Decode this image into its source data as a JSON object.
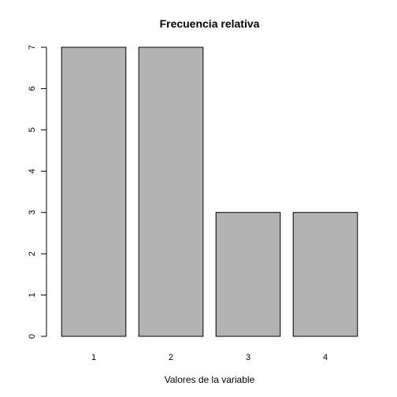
{
  "chart_data": {
    "type": "bar",
    "title": "Frecuencia relativa",
    "xlabel": "Valores de la variable",
    "ylabel": "",
    "categories": [
      "1",
      "2",
      "3",
      "4"
    ],
    "values": [
      7,
      7,
      3,
      3
    ],
    "ylim": [
      0,
      7
    ],
    "yticks": [
      "0",
      "1",
      "2",
      "3",
      "4",
      "5",
      "6",
      "7"
    ],
    "bar_color": "#b3b3b3",
    "bar_edge_color": "#000000"
  }
}
